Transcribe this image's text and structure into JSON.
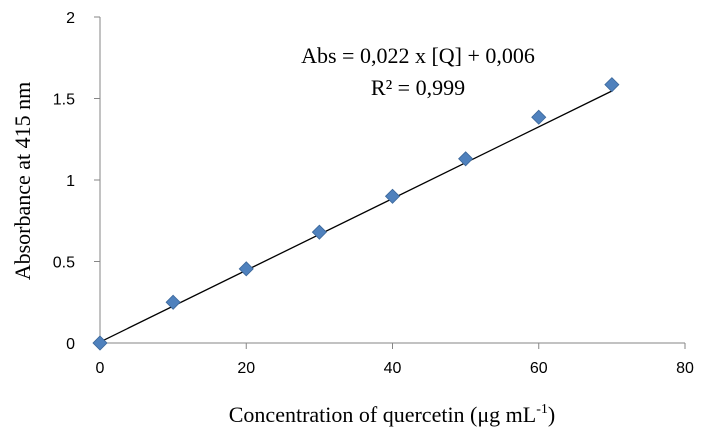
{
  "chart_data": {
    "type": "scatter",
    "xlabel_main": "Concentration of quercetin (μg mL",
    "xlabel_sup": "-1",
    "xlabel_close": ")",
    "ylabel": "Absorbance  at 415 nm",
    "xlim": [
      0,
      80
    ],
    "ylim": [
      0,
      2
    ],
    "xticks": [
      "0",
      "20",
      "40",
      "60",
      "80"
    ],
    "yticks": [
      "0",
      "0.5",
      "1",
      "1.5",
      "2"
    ],
    "points": [
      {
        "x": 0,
        "y": 0.0
      },
      {
        "x": 10,
        "y": 0.25
      },
      {
        "x": 20,
        "y": 0.455
      },
      {
        "x": 30,
        "y": 0.68
      },
      {
        "x": 40,
        "y": 0.9
      },
      {
        "x": 50,
        "y": 1.13
      },
      {
        "x": 60,
        "y": 1.385
      },
      {
        "x": 70,
        "y": 1.585
      }
    ],
    "trendline": {
      "slope": 0.022,
      "intercept": 0.006,
      "x_range": [
        0,
        70
      ]
    },
    "annotations": [
      "Abs = 0,022 x [Q] + 0,006",
      "R² = 0,999"
    ],
    "marker_color": "#4F81BD",
    "line_color": "#000000",
    "grid": false,
    "legend": "none"
  }
}
